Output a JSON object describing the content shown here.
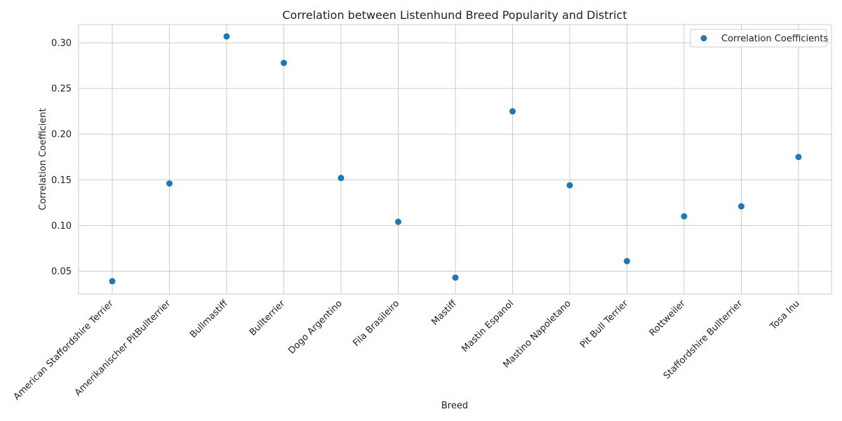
{
  "chart_data": {
    "type": "scatter",
    "title": "Correlation between Listenhund Breed Popularity and District",
    "xlabel": "Breed",
    "ylabel": "Correlation Coefficient",
    "categories": [
      "American Staffordshire Terrier",
      "Amerikanischer PitBullterrier",
      "Bullmastiff",
      "Bullterrier",
      "Dogo Argentino",
      "Fila Brasileiro",
      "Mastiff",
      "Mastin Espanol",
      "Mastino Napoletano",
      "Pit Bull Terrier",
      "Rottweiler",
      "Staffordshire Bullterrier",
      "Tosa Inu"
    ],
    "series": [
      {
        "name": "Correlation Coefficients",
        "color": "#1f77b4",
        "values": [
          0.039,
          0.146,
          0.307,
          0.278,
          0.152,
          0.104,
          0.043,
          0.225,
          0.144,
          0.061,
          0.11,
          0.121,
          0.175
        ]
      }
    ],
    "ylim": [
      0.025,
      0.32
    ],
    "yticks": [
      "0.05",
      "0.10",
      "0.15",
      "0.20",
      "0.25",
      "0.30"
    ],
    "grid": true,
    "legend_position": "top-right"
  }
}
